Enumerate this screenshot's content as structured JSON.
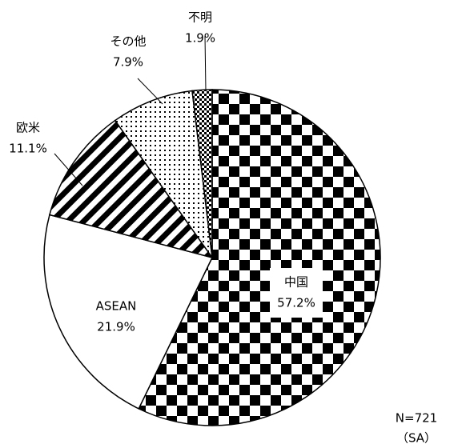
{
  "chart_data": {
    "type": "pie",
    "categories": [
      "中国",
      "ASEAN",
      "欧米",
      "その他",
      "不明"
    ],
    "values": [
      57.2,
      21.9,
      11.1,
      7.9,
      1.9
    ],
    "value_labels": [
      "57.2%",
      "21.9%",
      "11.1%",
      "7.9%",
      "1.9%"
    ],
    "patterns": [
      "checker",
      "none",
      "stripes",
      "dots",
      "fine-checker"
    ],
    "start_angle": 0,
    "direction": "clockwise",
    "annotations": [
      "N=721",
      "（SA）"
    ]
  }
}
